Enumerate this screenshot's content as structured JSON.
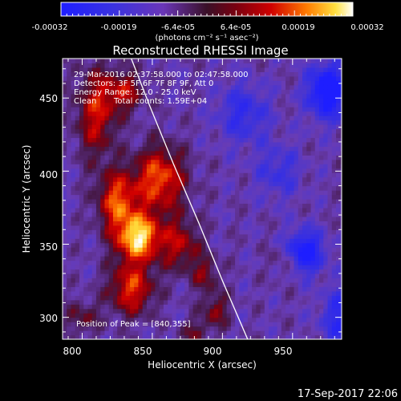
{
  "chart_data": {
    "type": "heatmap",
    "title": "Reconstructed RHESSI Image",
    "xlabel": "Heliocentric X (arcsec)",
    "ylabel": "Heliocentric Y (arcsec)",
    "xlim": [
      786,
      985
    ],
    "ylim": [
      285,
      477
    ],
    "x_ticks": [
      800,
      850,
      900,
      950
    ],
    "y_ticks": [
      300,
      350,
      400,
      450
    ],
    "colorbar": {
      "range": [
        -0.00032,
        0.00032
      ],
      "tick_values": [
        -0.00032,
        -0.00019,
        -6.4e-05,
        6.4e-05,
        0.00019,
        0.00032
      ],
      "tick_labels": [
        "-0.00032",
        "-0.00019",
        "-6.4e-05",
        "6.4e-05",
        "0.00019",
        "0.00032"
      ],
      "unit_label": "(photons cm⁻² s⁻¹ asec⁻²)"
    },
    "annotations": {
      "time_range": "29-Mar-2016 02:37:58.000 to 02:47:58.000",
      "detectors": "Detectors: 3F 5F 6F 7F 8F 9F, Att 0",
      "energy_range": "Energy Range: 12.0 - 25.0 keV",
      "method": "Clean",
      "total_counts": "Total counts: 1.59E+04",
      "peak_position": "Position of Peak = [840,355]"
    },
    "peak": [
      840,
      355
    ],
    "limb_line": [
      [
        835,
        477
      ],
      [
        848,
        445
      ],
      [
        865,
        405
      ],
      [
        883,
        365
      ],
      [
        900,
        325
      ],
      [
        918,
        285
      ]
    ],
    "grid": false,
    "legend": "none"
  },
  "footer": {
    "date": "17-Sep-2017 22:06"
  }
}
